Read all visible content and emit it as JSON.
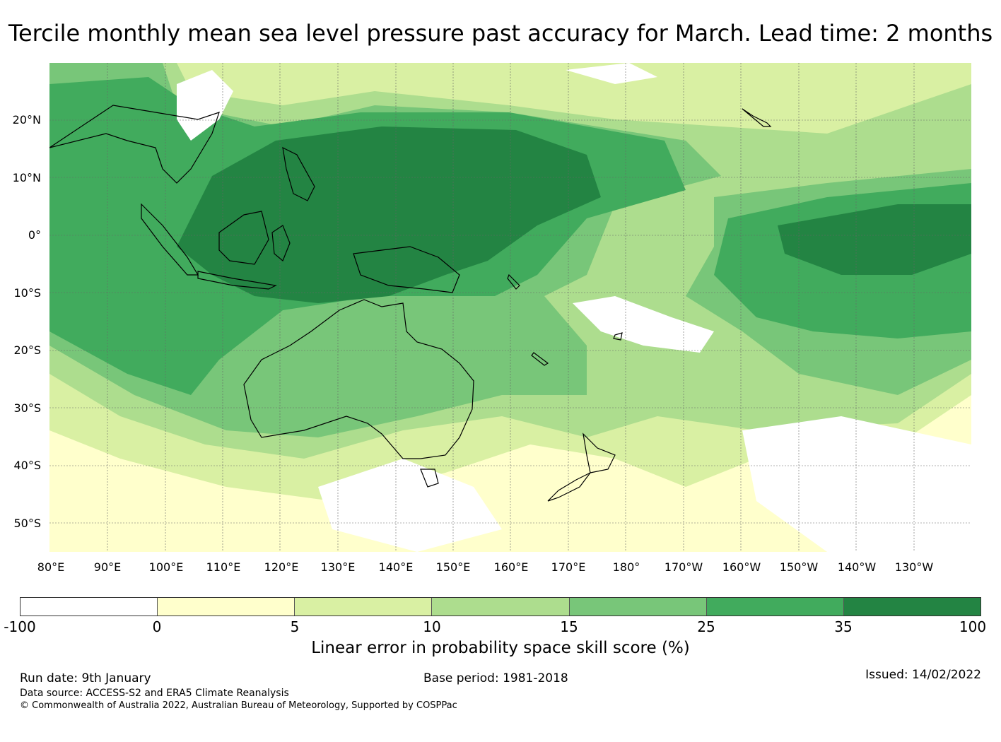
{
  "title": "Tercile monthly mean sea level pressure past accuracy for March. Lead time: 2 months",
  "map": {
    "lat_labels": [
      "20°N",
      "10°N",
      "0°",
      "10°S",
      "20°S",
      "30°S",
      "40°S",
      "50°S"
    ],
    "lon_labels": [
      "80°E",
      "90°E",
      "100°E",
      "110°E",
      "120°E",
      "130°E",
      "140°E",
      "150°E",
      "160°E",
      "170°E",
      "180°",
      "170°W",
      "160°W",
      "150°W",
      "140°W",
      "130°W"
    ],
    "lat_range": [
      -55,
      30
    ],
    "lon_range": [
      80,
      240
    ]
  },
  "colorbar": {
    "ticks": [
      "-100",
      "0",
      "5",
      "10",
      "15",
      "25",
      "35",
      "100"
    ],
    "colors": [
      "#ffffff",
      "#ffffcc",
      "#d9f0a3",
      "#addd8e",
      "#78c679",
      "#41ab5d",
      "#238443"
    ],
    "label": "Linear error in probability space skill score (%)"
  },
  "footer": {
    "run_date": "Run date: 9th January",
    "base_period": "Base period: 1981-2018",
    "issued": "Issued: 14/02/2022",
    "data_source": "Data source: ACCESS-S2 and ERA5 Climate Reanalysis",
    "copyright": "© Commonwealth of Australia 2022, Australian Bureau of Meteorology, Supported by COSPPac"
  }
}
